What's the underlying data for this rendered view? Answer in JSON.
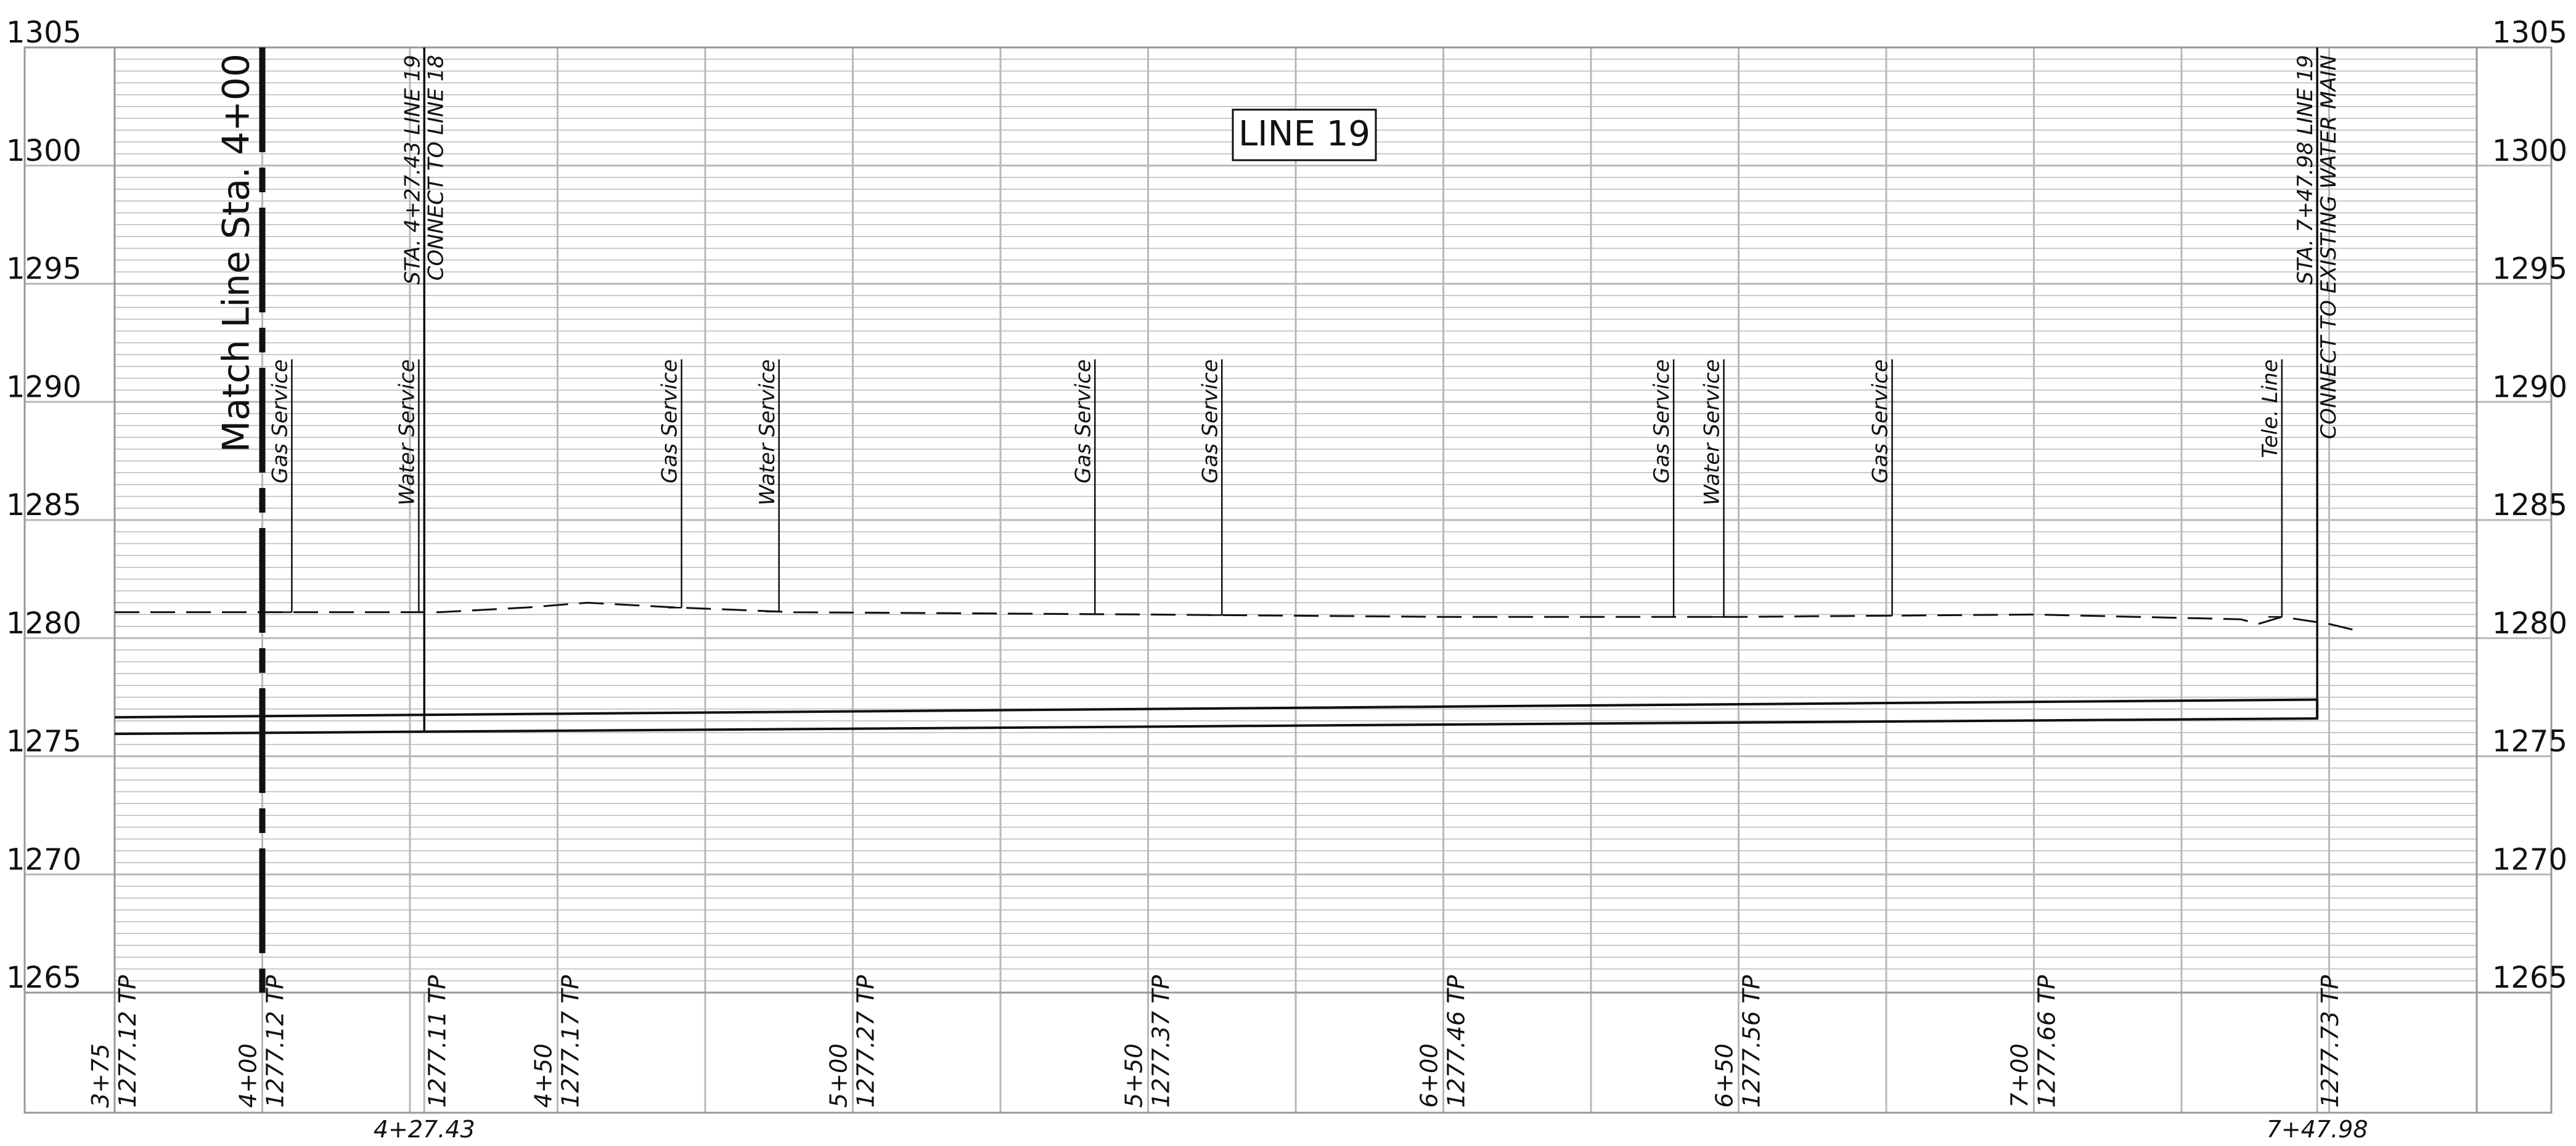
{
  "title": "LINE 19",
  "match_line": "Match Line Sta. 4+00",
  "elevations": [
    "1305",
    "1300",
    "1295",
    "1290",
    "1285",
    "1280",
    "1275",
    "1270",
    "1265"
  ],
  "elevation_values": [
    1305,
    1300,
    1295,
    1290,
    1285,
    1280,
    1275,
    1270,
    1265
  ],
  "elev_range": [
    1265,
    1305
  ],
  "station_range": [
    3.75,
    7.75
  ],
  "utilities": [
    {
      "name": "Gas Service",
      "sta": 4.05
    },
    {
      "name": "Water Service",
      "sta": 4.265
    },
    {
      "name": "Gas Service",
      "sta": 4.71
    },
    {
      "name": "Water Service",
      "sta": 4.875
    },
    {
      "name": "Gas Service",
      "sta": 5.41
    },
    {
      "name": "Gas Service",
      "sta": 5.625
    },
    {
      "name": "Gas Service",
      "sta": 6.39
    },
    {
      "name": "Water Service",
      "sta": 6.475
    },
    {
      "name": "Gas Service",
      "sta": 6.76
    },
    {
      "name": "Tele. Line",
      "sta": 7.42
    }
  ],
  "connections": [
    {
      "sta": 4.2743,
      "line1": "STA. 4+27.43 LINE 19",
      "line2": "CONNECT TO LINE 18",
      "station_label": "4+27.43"
    },
    {
      "sta": 7.4798,
      "line1": "STA. 7+47.98 LINE 19",
      "line2": "CONNECT TO EXISTING WATER MAIN",
      "station_label": "7+47.98"
    }
  ],
  "stations": [
    {
      "sta": 3.75,
      "label": "3+75",
      "tp": "1277.12 TP"
    },
    {
      "sta": 4.0,
      "label": "4+00",
      "tp": "1277.12 TP"
    },
    {
      "sta": 4.2743,
      "label": "",
      "tp": "1277.11 TP"
    },
    {
      "sta": 4.5,
      "label": "4+50",
      "tp": "1277.17 TP"
    },
    {
      "sta": 5.0,
      "label": "5+00",
      "tp": "1277.27 TP"
    },
    {
      "sta": 5.5,
      "label": "5+50",
      "tp": "1277.37 TP"
    },
    {
      "sta": 6.0,
      "label": "6+00",
      "tp": "1277.46 TP"
    },
    {
      "sta": 6.5,
      "label": "6+50",
      "tp": "1277.56 TP"
    },
    {
      "sta": 7.0,
      "label": "7+00",
      "tp": "1277.66 TP"
    },
    {
      "sta": 7.4798,
      "label": "",
      "tp": "1277.73 TP"
    }
  ],
  "ground_profile": [
    [
      3.75,
      1281.1
    ],
    [
      4.0,
      1281.1
    ],
    [
      4.3,
      1281.1
    ],
    [
      4.45,
      1281.3
    ],
    [
      4.55,
      1281.5
    ],
    [
      4.7,
      1281.3
    ],
    [
      4.9,
      1281.1
    ],
    [
      5.5,
      1281.0
    ],
    [
      6.0,
      1280.9
    ],
    [
      6.5,
      1280.9
    ],
    [
      7.0,
      1281.0
    ],
    [
      7.35,
      1280.8
    ],
    [
      7.38,
      1280.6
    ],
    [
      7.42,
      1280.9
    ],
    [
      7.5,
      1280.6
    ],
    [
      7.55,
      1280.3
    ]
  ],
  "pipe": {
    "start_sta": 3.75,
    "end_sta": 7.4798,
    "start_top": 1276.65,
    "start_bottom": 1275.95,
    "end_top": 1277.4,
    "end_bottom": 1276.6
  },
  "colors": {
    "grid": "#b8b8b8",
    "line": "#111111",
    "frame": "#999999"
  }
}
